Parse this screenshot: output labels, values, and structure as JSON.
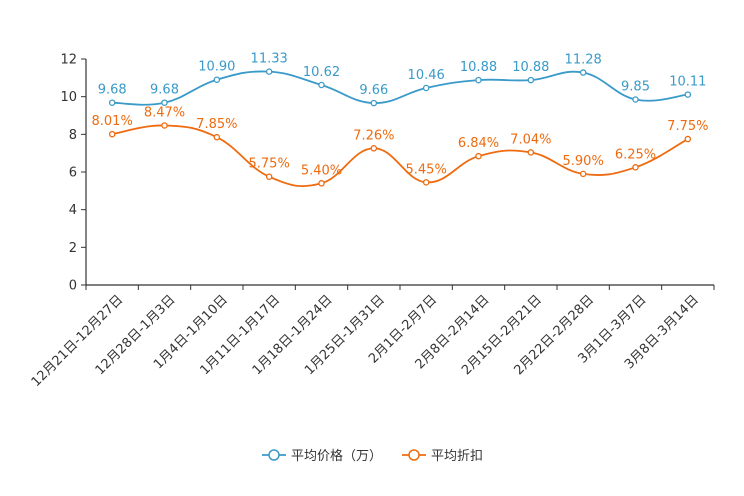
{
  "chart_data": {
    "type": "line",
    "title": "",
    "xlabel": "",
    "ylabel": "",
    "ylim": [
      0,
      12
    ],
    "yticks": [
      0,
      2,
      4,
      6,
      8,
      10,
      12
    ],
    "grid": false,
    "legend_position": "bottom",
    "categories": [
      "12月21日-12月27日",
      "12月28日-1月3日",
      "1月4日-1月10日",
      "1月11日-1月17日",
      "1月18日-1月24日",
      "1月25日-1月31日",
      "2月1日-2月7日",
      "2月8日-2月14日",
      "2月15日-2月21日",
      "2月22日-2月28日",
      "3月1日-3月7日",
      "3月8日-3月14日"
    ],
    "series": [
      {
        "name": "平均价格（万）",
        "color": "#3a9ac9",
        "values": [
          9.68,
          9.68,
          10.9,
          11.33,
          10.62,
          9.66,
          10.46,
          10.88,
          10.88,
          11.28,
          9.85,
          10.11
        ],
        "labels": [
          "9.68",
          "9.68",
          "10.90",
          "11.33",
          "10.62",
          "9.66",
          "10.46",
          "10.88",
          "10.88",
          "11.28",
          "9.85",
          "10.11"
        ]
      },
      {
        "name": "平均折扣",
        "color": "#ee6b10",
        "values": [
          8.01,
          8.47,
          7.85,
          5.75,
          5.4,
          7.26,
          5.45,
          6.84,
          7.04,
          5.9,
          6.25,
          7.75
        ],
        "labels": [
          "8.01%",
          "8.47%",
          "7.85%",
          "5.75%",
          "5.40%",
          "7.26%",
          "5.45%",
          "6.84%",
          "7.04%",
          "5.90%",
          "6.25%",
          "7.75%"
        ]
      }
    ]
  }
}
